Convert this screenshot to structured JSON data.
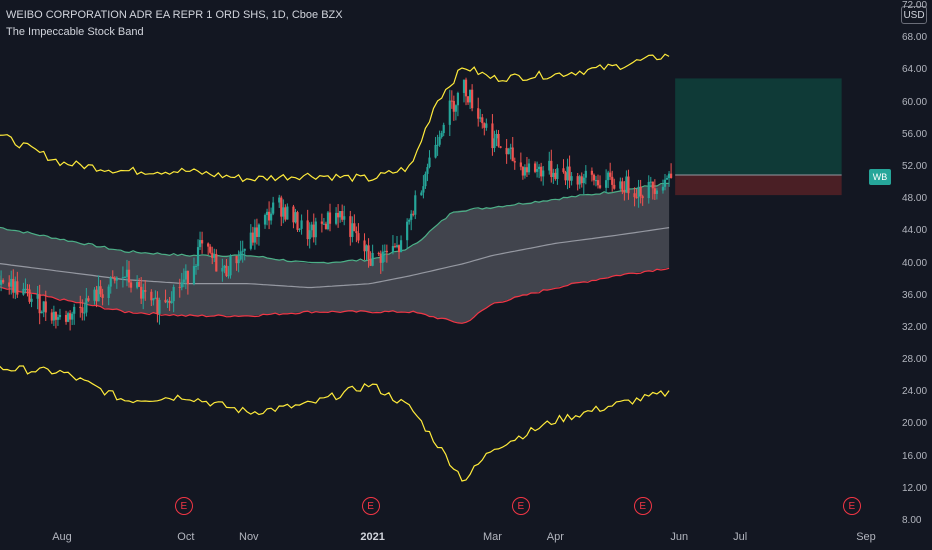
{
  "chart_data": {
    "type": "candlestick",
    "title": "WEIBO CORPORATION ADR EA REPR 1 ORD SHS, 1D, Cboe BZX",
    "indicator": "The Impeccable Stock Band",
    "currency": "USD",
    "symbol_tag": "WB",
    "y_ticks": [
      "72.00",
      "68.00",
      "64.00",
      "60.00",
      "56.00",
      "52.00",
      "48.00",
      "44.00",
      "40.00",
      "36.00",
      "32.00",
      "28.00",
      "24.00",
      "20.00",
      "16.00",
      "12.00",
      "8.00"
    ],
    "ylim": [
      8,
      72
    ],
    "x_ticks": [
      {
        "label": "Aug",
        "date": "2020-08-01",
        "bold": false
      },
      {
        "label": "Oct",
        "date": "2020-10-01",
        "bold": false
      },
      {
        "label": "Nov",
        "date": "2020-11-01",
        "bold": false
      },
      {
        "label": "2021",
        "date": "2021-01-01",
        "bold": true
      },
      {
        "label": "Mar",
        "date": "2021-03-01",
        "bold": false
      },
      {
        "label": "Apr",
        "date": "2021-04-01",
        "bold": false
      },
      {
        "label": "Jun",
        "date": "2021-06-01",
        "bold": false
      },
      {
        "label": "Jul",
        "date": "2021-07-01",
        "bold": false
      },
      {
        "label": "Sep",
        "date": "2021-09-01",
        "bold": false
      }
    ],
    "earnings_markers": [
      {
        "label": "E",
        "date": "2020-09-30"
      },
      {
        "label": "E",
        "date": "2020-12-31"
      },
      {
        "label": "E",
        "date": "2021-03-15"
      },
      {
        "label": "E",
        "date": "2021-05-14"
      },
      {
        "label": "E",
        "date": "2021-08-25"
      }
    ],
    "series": [
      {
        "name": "price",
        "values": [
          [
            "2020-07-01",
            38.5
          ],
          [
            "2020-07-15",
            36.0
          ],
          [
            "2020-08-01",
            33.0
          ],
          [
            "2020-08-15",
            35.5
          ],
          [
            "2020-09-01",
            38.5
          ],
          [
            "2020-09-15",
            34.5
          ],
          [
            "2020-10-01",
            38.0
          ],
          [
            "2020-10-08",
            42.0
          ],
          [
            "2020-10-20",
            39.0
          ],
          [
            "2020-11-01",
            42.5
          ],
          [
            "2020-11-15",
            47.5
          ],
          [
            "2020-12-01",
            43.5
          ],
          [
            "2020-12-15",
            46.5
          ],
          [
            "2020-12-31",
            40.5
          ],
          [
            "2021-01-15",
            42.0
          ],
          [
            "2021-01-25",
            50.0
          ],
          [
            "2021-02-05",
            58.0
          ],
          [
            "2021-02-15",
            62.0
          ],
          [
            "2021-03-01",
            55.5
          ],
          [
            "2021-03-15",
            52.0
          ],
          [
            "2021-04-01",
            51.5
          ],
          [
            "2021-04-15",
            50.5
          ],
          [
            "2021-05-01",
            50.0
          ],
          [
            "2021-05-15",
            49.0
          ],
          [
            "2021-05-28",
            51.0
          ]
        ]
      },
      {
        "name": "outer-upper",
        "values": [
          [
            "2020-07-01",
            56.0
          ],
          [
            "2020-08-01",
            52.5
          ],
          [
            "2020-09-01",
            51.5
          ],
          [
            "2020-10-01",
            51.5
          ],
          [
            "2020-11-01",
            50.5
          ],
          [
            "2020-12-01",
            51.0
          ],
          [
            "2020-12-31",
            50.5
          ],
          [
            "2021-01-20",
            52.0
          ],
          [
            "2021-02-01",
            60.0
          ],
          [
            "2021-02-15",
            64.5
          ],
          [
            "2021-03-01",
            63.0
          ],
          [
            "2021-04-01",
            63.5
          ],
          [
            "2021-05-01",
            64.5
          ],
          [
            "2021-05-28",
            66.0
          ]
        ]
      },
      {
        "name": "outer-lower",
        "values": [
          [
            "2020-07-01",
            27.0
          ],
          [
            "2020-08-01",
            26.5
          ],
          [
            "2020-09-01",
            23.0
          ],
          [
            "2020-10-01",
            23.5
          ],
          [
            "2020-11-01",
            21.5
          ],
          [
            "2020-12-01",
            22.5
          ],
          [
            "2020-12-31",
            25.0
          ],
          [
            "2021-01-20",
            22.0
          ],
          [
            "2021-02-15",
            13.0
          ],
          [
            "2021-03-01",
            17.0
          ],
          [
            "2021-04-01",
            20.5
          ],
          [
            "2021-05-01",
            22.5
          ],
          [
            "2021-05-28",
            24.0
          ]
        ]
      },
      {
        "name": "band-upper",
        "values": [
          [
            "2020-07-01",
            44.5
          ],
          [
            "2020-08-01",
            43.0
          ],
          [
            "2020-09-01",
            41.5
          ],
          [
            "2020-10-01",
            41.0
          ],
          [
            "2020-11-01",
            41.0
          ],
          [
            "2020-12-01",
            40.0
          ],
          [
            "2020-12-31",
            40.5
          ],
          [
            "2021-01-20",
            42.0
          ],
          [
            "2021-02-10",
            46.5
          ],
          [
            "2021-03-01",
            47.0
          ],
          [
            "2021-04-01",
            48.0
          ],
          [
            "2021-05-01",
            49.0
          ],
          [
            "2021-05-28",
            50.0
          ]
        ]
      },
      {
        "name": "band-mid",
        "values": [
          [
            "2020-07-01",
            40.0
          ],
          [
            "2020-08-01",
            39.0
          ],
          [
            "2020-09-01",
            38.0
          ],
          [
            "2020-10-01",
            37.5
          ],
          [
            "2020-11-01",
            37.5
          ],
          [
            "2020-12-01",
            37.0
          ],
          [
            "2020-12-31",
            37.5
          ],
          [
            "2021-01-20",
            38.5
          ],
          [
            "2021-02-15",
            40.0
          ],
          [
            "2021-03-01",
            41.0
          ],
          [
            "2021-04-01",
            42.5
          ],
          [
            "2021-05-01",
            43.5
          ],
          [
            "2021-05-28",
            44.5
          ]
        ]
      },
      {
        "name": "band-lower",
        "values": [
          [
            "2020-07-01",
            37.0
          ],
          [
            "2020-08-01",
            35.5
          ],
          [
            "2020-09-01",
            34.0
          ],
          [
            "2020-10-01",
            33.5
          ],
          [
            "2020-11-01",
            33.5
          ],
          [
            "2020-12-01",
            34.0
          ],
          [
            "2020-12-31",
            34.0
          ],
          [
            "2021-01-20",
            34.0
          ],
          [
            "2021-02-15",
            32.5
          ],
          [
            "2021-03-01",
            35.0
          ],
          [
            "2021-04-01",
            37.0
          ],
          [
            "2021-05-01",
            38.5
          ],
          [
            "2021-05-28",
            39.5
          ]
        ]
      }
    ],
    "position": {
      "entry": 51.0,
      "target": 63.0,
      "stop": 48.5,
      "start": "2021-05-30",
      "end": "2021-08-20"
    },
    "colors": {
      "up": "#26a69a",
      "down": "#ef5350",
      "outer": "#ffeb3b",
      "band_upper": "#4caf87",
      "band_lower": "#f23645",
      "band_fill": "#4a4c55",
      "mid": "#9598a1",
      "target_fill": "#0f3a37",
      "stop_fill": "#4a1f25",
      "background": "#131722",
      "text": "#b2b5be"
    }
  }
}
